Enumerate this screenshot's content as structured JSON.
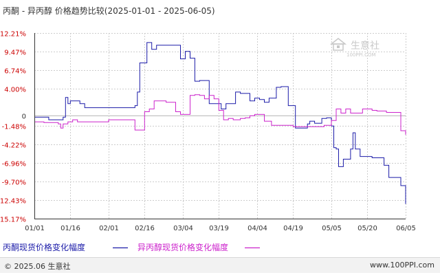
{
  "title": "丙酮 - 异丙醇 价格趋势比较(2025-01-01 - 2025-06-05)",
  "footer": {
    "copyright": "© 2025.06 生意社",
    "url": "www.100PPI.com"
  },
  "watermark": {
    "text": "生意社",
    "sub": "100PPI.COM"
  },
  "colors": {
    "series_acetone": "#1a1aa8",
    "series_ipa": "#cc22cc",
    "grid": "#cccccc",
    "zero_line": "#b8b8b8",
    "tick_text_y": "#cc0000",
    "tick_text_x": "#333333",
    "axis": "#333333",
    "background": "#ffffff",
    "watermark": "#c8c8c8"
  },
  "chart_data": {
    "type": "line",
    "title": "丙酮 - 异丙醇 价格趋势比较(2025-01-01 - 2025-06-05)",
    "xlabel": "",
    "ylabel": "",
    "x_range": [
      "2025-01-01",
      "2025-06-05"
    ],
    "ylim": [
      -15.17,
      12.21
    ],
    "y_ticks": [
      12.21,
      9.47,
      6.74,
      4.0,
      0,
      -1.48,
      -4.22,
      -6.96,
      -9.7,
      -12.43,
      -15.17
    ],
    "y_tick_labels": [
      "12.21%",
      "9.47%",
      "6.74%",
      "4.00%",
      "0",
      "-1.48%",
      "-4.22%",
      "-6.96%",
      "-9.70%",
      "-12.43%",
      "-15.17%"
    ],
    "x_ticks": [
      "2025-01-01",
      "2025-01-16",
      "2025-02-01",
      "2025-02-16",
      "2025-03-04",
      "2025-03-19",
      "2025-04-04",
      "2025-04-19",
      "2025-05-05",
      "2025-05-20",
      "2025-06-05"
    ],
    "x_tick_labels": [
      "01/01",
      "01/16",
      "02/01",
      "02/16",
      "03/04",
      "03/19",
      "04/04",
      "04/19",
      "05/05",
      "05/20",
      "06/05"
    ],
    "grid": true,
    "legend_position": "bottom",
    "series": [
      {
        "name": "丙酮现货价格变化幅度",
        "x": [
          "2025-01-01",
          "2025-01-06",
          "2025-01-07",
          "2025-01-12",
          "2025-01-13",
          "2025-01-14",
          "2025-01-15",
          "2025-01-16",
          "2025-01-20",
          "2025-01-22",
          "2025-02-10",
          "2025-02-12",
          "2025-02-13",
          "2025-02-14",
          "2025-02-17",
          "2025-02-19",
          "2025-02-21",
          "2025-03-01",
          "2025-03-03",
          "2025-03-05",
          "2025-03-07",
          "2025-03-09",
          "2025-03-11",
          "2025-03-15",
          "2025-03-17",
          "2025-03-20",
          "2025-03-22",
          "2025-03-26",
          "2025-03-28",
          "2025-03-30",
          "2025-04-01",
          "2025-04-03",
          "2025-04-05",
          "2025-04-07",
          "2025-04-09",
          "2025-04-12",
          "2025-04-14",
          "2025-04-17",
          "2025-04-20",
          "2025-04-25",
          "2025-04-26",
          "2025-04-28",
          "2025-05-01",
          "2025-05-03",
          "2025-05-05",
          "2025-05-06",
          "2025-05-07",
          "2025-05-08",
          "2025-05-10",
          "2025-05-13",
          "2025-05-14",
          "2025-05-15",
          "2025-05-17",
          "2025-05-22",
          "2025-05-27",
          "2025-05-29",
          "2025-06-03",
          "2025-06-05"
        ],
        "values": [
          -0.2,
          -0.2,
          -0.6,
          -0.6,
          -0.2,
          2.7,
          1.8,
          2.2,
          1.8,
          1.2,
          1.2,
          1.5,
          3.5,
          7.8,
          10.8,
          9.8,
          10.4,
          10.4,
          8.4,
          9.5,
          8.5,
          5.1,
          5.2,
          1.8,
          1.8,
          1.0,
          1.8,
          3.5,
          3.3,
          3.3,
          2.2,
          2.6,
          2.4,
          2.0,
          2.6,
          4.2,
          4.3,
          1.5,
          -1.8,
          -1.2,
          -0.8,
          -1.1,
          -0.4,
          -0.3,
          -1.5,
          -4.7,
          -4.9,
          -7.5,
          -6.4,
          -4.9,
          -2.5,
          -4.9,
          -6.0,
          -6.2,
          -7.3,
          -9.1,
          -10.3,
          -13.0
        ]
      },
      {
        "name": "异丙醇现货价格变化幅度",
        "x": [
          "2025-01-01",
          "2025-01-03",
          "2025-01-05",
          "2025-01-10",
          "2025-01-11",
          "2025-01-12",
          "2025-01-13",
          "2025-01-15",
          "2025-01-17",
          "2025-01-19",
          "2025-01-21",
          "2025-02-01",
          "2025-02-10",
          "2025-02-12",
          "2025-02-13",
          "2025-02-14",
          "2025-02-16",
          "2025-02-18",
          "2025-02-20",
          "2025-02-25",
          "2025-02-27",
          "2025-03-01",
          "2025-03-03",
          "2025-03-05",
          "2025-03-07",
          "2025-03-09",
          "2025-03-11",
          "2025-03-13",
          "2025-03-15",
          "2025-03-17",
          "2025-03-19",
          "2025-03-21",
          "2025-03-23",
          "2025-03-25",
          "2025-03-28",
          "2025-03-30",
          "2025-04-01",
          "2025-04-03",
          "2025-04-05",
          "2025-04-07",
          "2025-04-10",
          "2025-04-12",
          "2025-04-19",
          "2025-04-28",
          "2025-04-30",
          "2025-05-01",
          "2025-05-02",
          "2025-05-03",
          "2025-05-04",
          "2025-05-05",
          "2025-05-07",
          "2025-05-09",
          "2025-05-11",
          "2025-05-13",
          "2025-05-18",
          "2025-05-22",
          "2025-05-24",
          "2025-05-28",
          "2025-06-03",
          "2025-06-04",
          "2025-06-05"
        ],
        "values": [
          -0.9,
          -0.9,
          -1.0,
          -1.0,
          -1.2,
          -1.8,
          -1.2,
          -0.9,
          -0.6,
          -0.9,
          -0.9,
          -0.6,
          -0.6,
          -2.1,
          -2.1,
          -2.1,
          0.6,
          1.0,
          2.2,
          2.0,
          2.0,
          0.6,
          0.2,
          0.2,
          3.0,
          3.1,
          3.0,
          2.5,
          3.0,
          2.5,
          0.8,
          -0.6,
          -0.4,
          -0.6,
          -0.4,
          -0.3,
          0.0,
          0.2,
          0.2,
          -0.8,
          -1.4,
          -1.4,
          -1.6,
          -1.6,
          -1.6,
          -1.6,
          -1.4,
          -1.4,
          -1.4,
          -0.7,
          1.0,
          0.4,
          1.0,
          0.4,
          1.0,
          0.8,
          0.7,
          0.5,
          -2.2,
          -2.2,
          -2.8
        ]
      }
    ]
  }
}
